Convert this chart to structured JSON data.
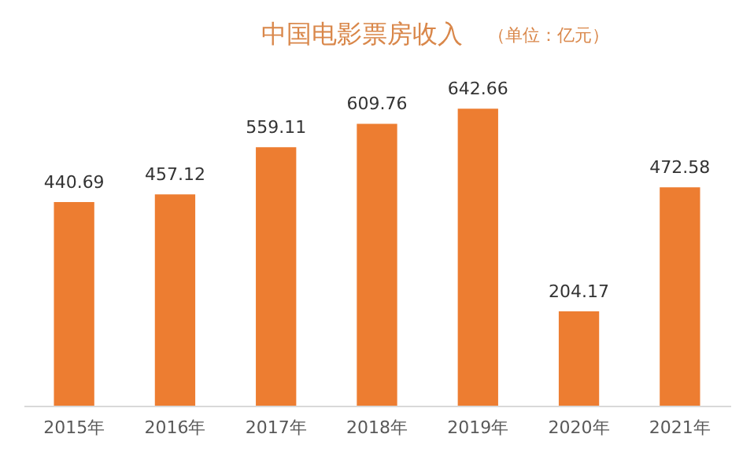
{
  "chart_data": {
    "type": "bar",
    "title": "中国电影票房收入",
    "subtitle": "（单位：亿元）",
    "categories": [
      "2015年",
      "2016年",
      "2017年",
      "2018年",
      "2019年",
      "2020年",
      "2021年"
    ],
    "values": [
      440.69,
      457.12,
      559.11,
      609.76,
      642.66,
      204.17,
      472.58
    ],
    "color": "#ed7d31",
    "data_labels": true,
    "grid": false
  }
}
